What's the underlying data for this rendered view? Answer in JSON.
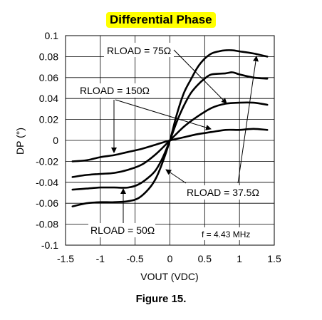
{
  "chart_data": {
    "type": "line",
    "title": "Differential Phase",
    "xlabel": "VOUT (VDC)",
    "ylabel": "DP (°)",
    "xlim": [
      -1.5,
      1.5
    ],
    "ylim": [
      -0.1,
      0.1
    ],
    "x_ticks": [
      "-1.5",
      "-1",
      "-0.5",
      "0",
      "0.5",
      "1",
      "1.5"
    ],
    "y_ticks": [
      "0.1",
      "0.08",
      "0.06",
      "0.04",
      "0.02",
      "0",
      "-0.02",
      "-0.04",
      "-0.06",
      "-0.08",
      "-0.1"
    ],
    "grid": true,
    "annotation": "f = 4.43 MHz",
    "series": [
      {
        "name": "RLOAD = 75Ω",
        "points": [
          [
            -1.4,
            -0.063
          ],
          [
            -1.2,
            -0.06
          ],
          [
            -1.0,
            -0.059
          ],
          [
            -0.8,
            -0.059
          ],
          [
            -0.6,
            -0.058
          ],
          [
            -0.45,
            -0.055
          ],
          [
            -0.3,
            -0.046
          ],
          [
            -0.2,
            -0.036
          ],
          [
            -0.1,
            -0.02
          ],
          [
            0,
            0
          ],
          [
            0.1,
            0.025
          ],
          [
            0.2,
            0.045
          ],
          [
            0.3,
            0.058
          ],
          [
            0.4,
            0.07
          ],
          [
            0.5,
            0.078
          ],
          [
            0.6,
            0.083
          ],
          [
            0.7,
            0.085
          ],
          [
            0.8,
            0.086
          ],
          [
            0.9,
            0.086
          ],
          [
            1.0,
            0.085
          ],
          [
            1.2,
            0.083
          ],
          [
            1.4,
            0.08
          ]
        ]
      },
      {
        "name": "RLOAD = 50Ω",
        "points": [
          [
            -1.4,
            -0.047
          ],
          [
            -1.2,
            -0.046
          ],
          [
            -1.0,
            -0.045
          ],
          [
            -0.8,
            -0.045
          ],
          [
            -0.6,
            -0.045
          ],
          [
            -0.45,
            -0.042
          ],
          [
            -0.3,
            -0.035
          ],
          [
            -0.2,
            -0.028
          ],
          [
            -0.1,
            -0.016
          ],
          [
            0,
            0
          ],
          [
            0.1,
            0.018
          ],
          [
            0.2,
            0.033
          ],
          [
            0.3,
            0.045
          ],
          [
            0.4,
            0.053
          ],
          [
            0.5,
            0.059
          ],
          [
            0.6,
            0.063
          ],
          [
            0.8,
            0.064
          ],
          [
            0.9,
            0.065
          ],
          [
            1.0,
            0.063
          ],
          [
            1.2,
            0.06
          ],
          [
            1.4,
            0.059
          ]
        ]
      },
      {
        "name": "RLOAD = 37.5Ω",
        "points": [
          [
            -1.4,
            -0.035
          ],
          [
            -1.2,
            -0.033
          ],
          [
            -1.0,
            -0.032
          ],
          [
            -0.8,
            -0.031
          ],
          [
            -0.6,
            -0.028
          ],
          [
            -0.4,
            -0.023
          ],
          [
            -0.2,
            -0.013
          ],
          [
            0,
            0
          ],
          [
            0.2,
            0.013
          ],
          [
            0.4,
            0.023
          ],
          [
            0.6,
            0.031
          ],
          [
            0.8,
            0.035
          ],
          [
            1.0,
            0.036
          ],
          [
            1.2,
            0.036
          ],
          [
            1.4,
            0.034
          ]
        ]
      },
      {
        "name": "RLOAD = 150Ω",
        "points": [
          [
            -1.4,
            -0.02
          ],
          [
            -1.2,
            -0.019
          ],
          [
            -1.0,
            -0.016
          ],
          [
            -0.8,
            -0.014
          ],
          [
            -0.6,
            -0.011
          ],
          [
            -0.4,
            -0.008
          ],
          [
            -0.2,
            -0.004
          ],
          [
            0,
            0
          ],
          [
            0.2,
            0.003
          ],
          [
            0.4,
            0.006
          ],
          [
            0.6,
            0.008
          ],
          [
            0.8,
            0.01
          ],
          [
            1.0,
            0.01
          ],
          [
            1.2,
            0.011
          ],
          [
            1.4,
            0.01
          ]
        ]
      }
    ],
    "labels": [
      "RLOAD = 75Ω",
      "RLOAD = 150Ω",
      "RLOAD = 37.5Ω",
      "RLOAD = 50Ω"
    ]
  },
  "figure_caption": "Figure 15."
}
